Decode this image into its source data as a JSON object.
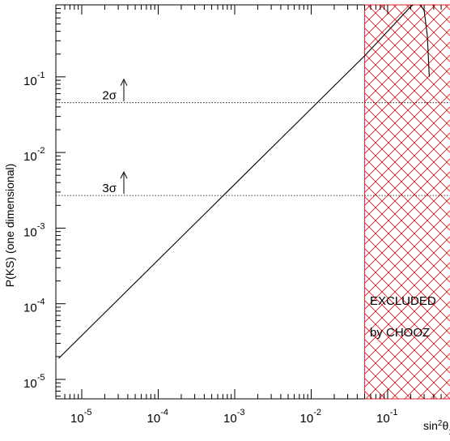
{
  "chart_data": {
    "type": "line",
    "xscale": "log",
    "yscale": "log",
    "xlim": [
      5e-06,
      0.35
    ],
    "ylim": [
      5e-06,
      1
    ],
    "ylabel": "P(KS) (one dimensional)",
    "xlabel": {
      "base": "sin",
      "sup": "2",
      "theta": "θ",
      "sub": "13"
    },
    "x_ticks": [
      {
        "value": 1e-05,
        "base": "10",
        "exp": "-5"
      },
      {
        "value": 0.0001,
        "base": "10",
        "exp": "-4"
      },
      {
        "value": 0.001,
        "base": "10",
        "exp": "-3"
      },
      {
        "value": 0.01,
        "base": "10",
        "exp": "-2"
      },
      {
        "value": 0.1,
        "base": "10",
        "exp": "-1"
      }
    ],
    "y_ticks": [
      {
        "value": 1e-05,
        "base": "10",
        "exp": "-5"
      },
      {
        "value": 0.0001,
        "base": "10",
        "exp": "-4"
      },
      {
        "value": 0.001,
        "base": "10",
        "exp": "-3"
      },
      {
        "value": 0.01,
        "base": "10",
        "exp": "-2"
      },
      {
        "value": 0.1,
        "base": "10",
        "exp": "-1"
      }
    ],
    "series": [
      {
        "x": [
          5e-06,
          1e-05,
          0.0001,
          0.001,
          0.01,
          0.05,
          0.1,
          0.2,
          0.25,
          0.3,
          0.33,
          0.35
        ],
        "y": [
          1.9e-05,
          3.8e-05,
          0.00038,
          0.0038,
          0.038,
          0.19,
          0.4,
          0.85,
          1.0,
          0.75,
          0.35,
          0.1
        ],
        "color": "#000000"
      }
    ],
    "reference_lines": [
      {
        "y": 0.0455,
        "label": "2σ"
      },
      {
        "y": 0.0027,
        "label": "3σ"
      }
    ],
    "excluded_region": {
      "x_from": 0.05,
      "x_to": 0.35,
      "line1": "EXCLUDED",
      "line2": "by CHOOZ",
      "color": "#e0202a"
    }
  }
}
